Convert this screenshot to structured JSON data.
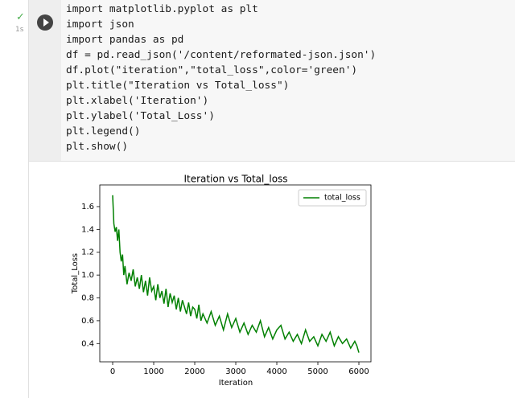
{
  "cell": {
    "status": "✓",
    "runtime": "1s",
    "code": [
      "import matplotlib.pyplot as plt",
      "import json",
      "import pandas as pd",
      "df = pd.read_json('/content/reformated-json.json')",
      "df.plot(\"iteration\",\"total_loss\",color='green')",
      "plt.title(\"Iteration vs Total_loss\")",
      "plt.xlabel('Iteration')",
      "plt.ylabel('Total_Loss')",
      "plt.legend()",
      "plt.show()"
    ]
  },
  "chart_data": {
    "type": "line",
    "title": "Iteration vs Total_loss",
    "x_label": "Iteration",
    "y_label": "Total_Loss",
    "x": [
      0,
      30,
      60,
      90,
      120,
      150,
      180,
      210,
      240,
      270,
      300,
      350,
      400,
      450,
      500,
      550,
      600,
      650,
      700,
      750,
      800,
      850,
      900,
      950,
      1000,
      1050,
      1100,
      1150,
      1200,
      1250,
      1300,
      1350,
      1400,
      1450,
      1500,
      1550,
      1600,
      1650,
      1700,
      1750,
      1800,
      1850,
      1900,
      1950,
      2000,
      2050,
      2100,
      2150,
      2200,
      2300,
      2400,
      2500,
      2600,
      2700,
      2800,
      2900,
      3000,
      3100,
      3200,
      3300,
      3400,
      3500,
      3600,
      3700,
      3800,
      3900,
      4000,
      4100,
      4200,
      4300,
      4400,
      4500,
      4600,
      4700,
      4800,
      4900,
      5000,
      5100,
      5200,
      5300,
      5400,
      5500,
      5600,
      5700,
      5800,
      5900,
      5950,
      6000
    ],
    "series": [
      {
        "name": "total_loss",
        "color": "#008000",
        "values": [
          1.7,
          1.45,
          1.38,
          1.42,
          1.3,
          1.4,
          1.2,
          1.12,
          1.18,
          1.0,
          1.08,
          0.92,
          1.02,
          0.95,
          1.05,
          0.9,
          0.98,
          0.88,
          1.0,
          0.85,
          0.95,
          0.82,
          0.98,
          0.86,
          0.9,
          0.78,
          0.92,
          0.8,
          0.86,
          0.75,
          0.88,
          0.72,
          0.84,
          0.76,
          0.82,
          0.7,
          0.8,
          0.68,
          0.78,
          0.72,
          0.66,
          0.76,
          0.64,
          0.72,
          0.7,
          0.62,
          0.74,
          0.6,
          0.66,
          0.58,
          0.68,
          0.56,
          0.64,
          0.52,
          0.66,
          0.54,
          0.62,
          0.5,
          0.58,
          0.48,
          0.56,
          0.5,
          0.6,
          0.46,
          0.54,
          0.44,
          0.52,
          0.56,
          0.44,
          0.5,
          0.42,
          0.48,
          0.4,
          0.52,
          0.42,
          0.46,
          0.38,
          0.48,
          0.42,
          0.5,
          0.38,
          0.46,
          0.4,
          0.44,
          0.36,
          0.42,
          0.38,
          0.32
        ]
      }
    ],
    "xlim": [
      -314,
      6294
    ],
    "ylim": [
      0.24,
      1.79
    ],
    "xticks": [
      0,
      1000,
      2000,
      3000,
      4000,
      5000,
      6000
    ],
    "yticks": [
      0.4,
      0.6,
      0.8,
      {
        "value": 1,
        "label": "1.0"
      },
      1.2,
      1.4,
      1.6
    ],
    "legend": "upper right"
  }
}
